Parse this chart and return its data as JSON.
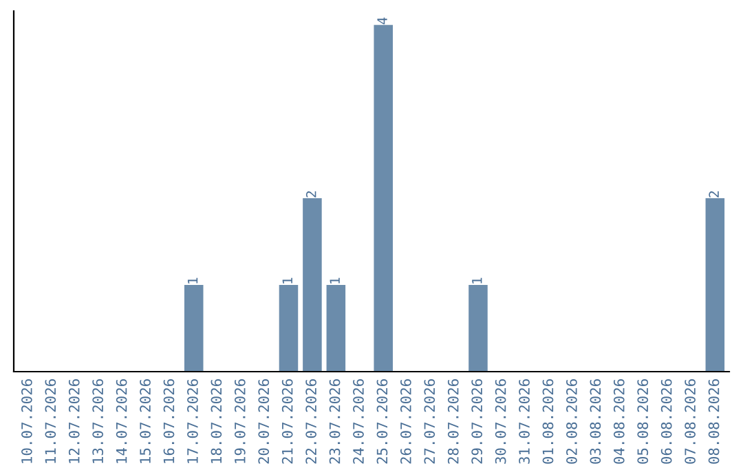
{
  "chart_data": {
    "type": "bar",
    "categories": [
      "10.07.2026",
      "11.07.2026",
      "12.07.2026",
      "13.07.2026",
      "14.07.2026",
      "15.07.2026",
      "16.07.2026",
      "17.07.2026",
      "18.07.2026",
      "19.07.2026",
      "20.07.2026",
      "21.07.2026",
      "22.07.2026",
      "23.07.2026",
      "24.07.2026",
      "25.07.2026",
      "26.07.2026",
      "27.07.2026",
      "28.07.2026",
      "29.07.2026",
      "30.07.2026",
      "31.07.2026",
      "01.08.2026",
      "02.08.2026",
      "03.08.2026",
      "04.08.2026",
      "05.08.2026",
      "06.08.2026",
      "07.08.2026",
      "08.08.2026"
    ],
    "values": [
      0,
      0,
      0,
      0,
      0,
      0,
      0,
      1,
      0,
      0,
      0,
      1,
      2,
      1,
      0,
      4,
      0,
      0,
      0,
      1,
      0,
      0,
      0,
      0,
      0,
      0,
      0,
      0,
      0,
      2
    ],
    "value_labels": [
      null,
      null,
      null,
      null,
      null,
      null,
      null,
      "1",
      null,
      null,
      null,
      "1",
      "2",
      "1",
      null,
      "4",
      null,
      null,
      null,
      "1",
      null,
      null,
      null,
      null,
      null,
      null,
      null,
      null,
      null,
      "2"
    ],
    "color": "#6b8cab",
    "tick_labels": "x",
    "grid": false,
    "legend": false
  }
}
